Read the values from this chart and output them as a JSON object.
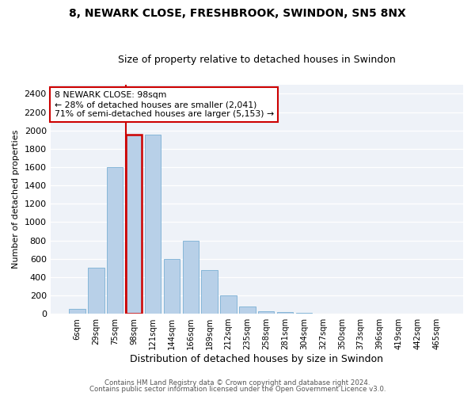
{
  "title1": "8, NEWARK CLOSE, FRESHBROOK, SWINDON, SN5 8NX",
  "title2": "Size of property relative to detached houses in Swindon",
  "xlabel": "Distribution of detached houses by size in Swindon",
  "ylabel": "Number of detached properties",
  "footer1": "Contains HM Land Registry data © Crown copyright and database right 2024.",
  "footer2": "Contains public sector information licensed under the Open Government Licence v3.0.",
  "annotation_line1": "8 NEWARK CLOSE: 98sqm",
  "annotation_line2": "← 28% of detached houses are smaller (2,041)",
  "annotation_line3": "71% of semi-detached houses are larger (5,153) →",
  "categories": [
    "6sqm",
    "29sqm",
    "75sqm",
    "98sqm",
    "121sqm",
    "144sqm",
    "166sqm",
    "189sqm",
    "212sqm",
    "235sqm",
    "258sqm",
    "281sqm",
    "304sqm",
    "327sqm",
    "350sqm",
    "373sqm",
    "396sqm",
    "419sqm",
    "442sqm",
    "465sqm"
  ],
  "values": [
    50,
    500,
    1600,
    1950,
    1950,
    600,
    800,
    480,
    200,
    80,
    25,
    20,
    10,
    5,
    2,
    0,
    0,
    0,
    0,
    0
  ],
  "highlight_index": 3,
  "bar_color": "#b8d0e8",
  "bar_edge_color": "#7aafd4",
  "highlight_line_color": "#cc0000",
  "background_color": "#eef2f8",
  "ylim": [
    0,
    2500
  ],
  "yticks": [
    0,
    200,
    400,
    600,
    800,
    1000,
    1200,
    1400,
    1600,
    1800,
    2000,
    2200,
    2400
  ],
  "figsize": [
    6.0,
    5.0
  ],
  "dpi": 100
}
